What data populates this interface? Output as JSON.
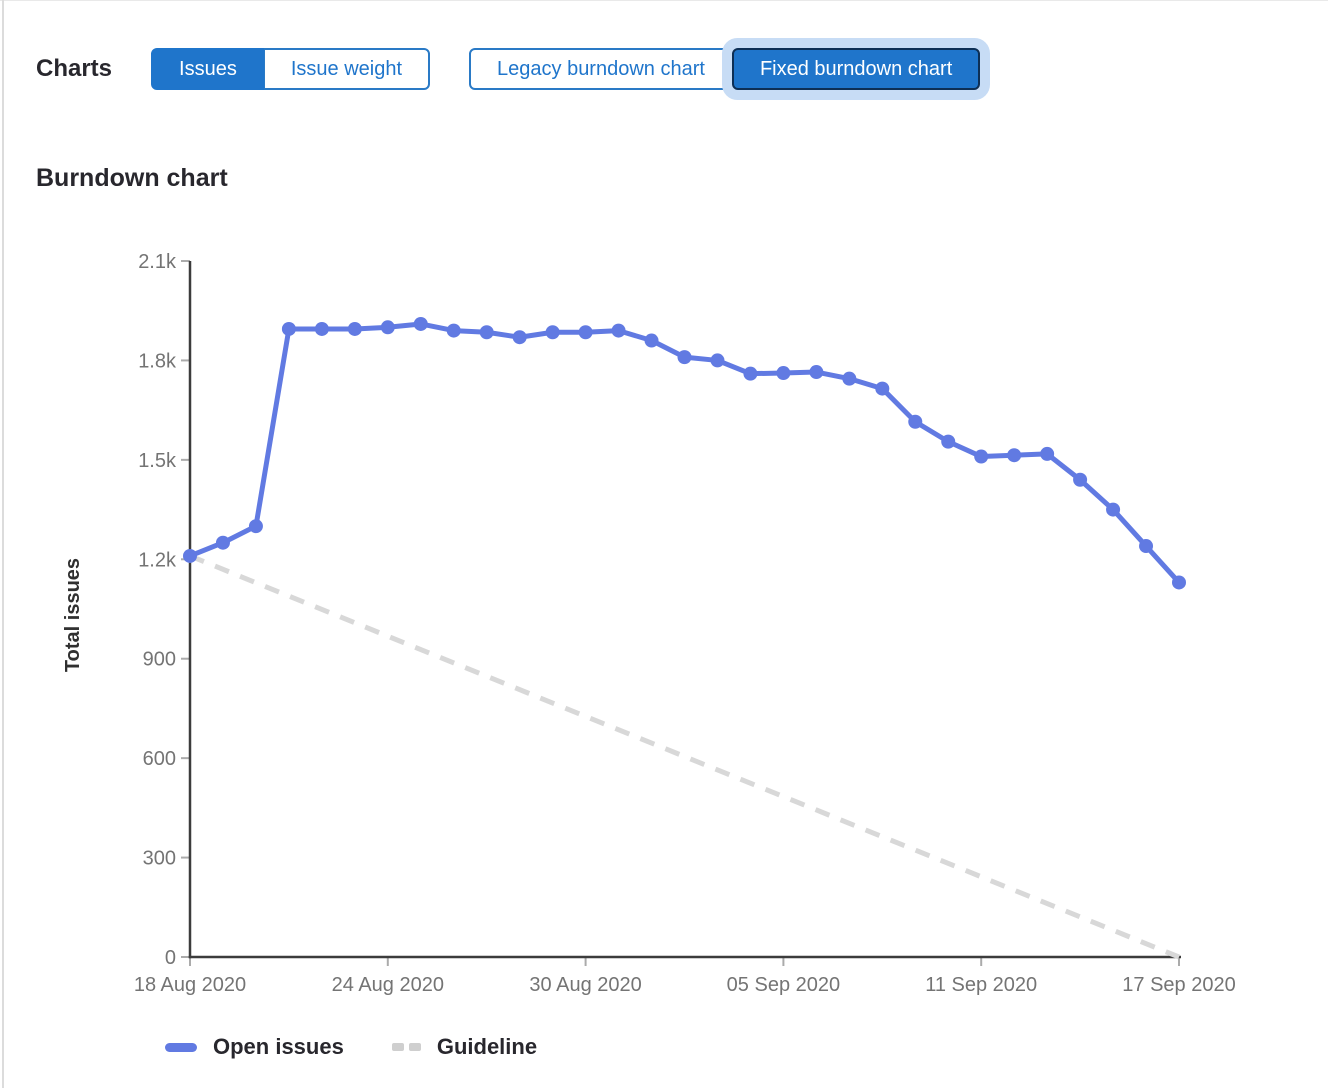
{
  "header": {
    "charts_label": "Charts",
    "metric_toggle": [
      {
        "label": "Issues",
        "active": true
      },
      {
        "label": "Issue weight",
        "active": false
      }
    ],
    "chart_toggle": [
      {
        "label": "Legacy burndown chart",
        "active": false
      },
      {
        "label": "Fixed burndown chart",
        "active": true,
        "focused": true
      }
    ]
  },
  "chart_data": {
    "type": "line",
    "title": "Burndown chart",
    "xlabel": "",
    "ylabel": "Total issues",
    "ylim": [
      0,
      2100
    ],
    "grid": false,
    "legend_position": "bottom",
    "y_ticks": [
      {
        "value": 0,
        "label": "0"
      },
      {
        "value": 300,
        "label": "300"
      },
      {
        "value": 600,
        "label": "600"
      },
      {
        "value": 900,
        "label": "900"
      },
      {
        "value": 1200,
        "label": "1.2k"
      },
      {
        "value": 1500,
        "label": "1.5k"
      },
      {
        "value": 1800,
        "label": "1.8k"
      },
      {
        "value": 2100,
        "label": "2.1k"
      }
    ],
    "x_ticks": [
      {
        "day": 0,
        "label": "18 Aug 2020"
      },
      {
        "day": 6,
        "label": "24 Aug 2020"
      },
      {
        "day": 12,
        "label": "30 Aug 2020"
      },
      {
        "day": 18,
        "label": "05 Sep 2020"
      },
      {
        "day": 24,
        "label": "11 Sep 2020"
      },
      {
        "day": 30,
        "label": "17 Sep 2020"
      }
    ],
    "days_total": 30,
    "series": [
      {
        "name": "Open issues",
        "type": "line-with-markers",
        "color": "#617ae2",
        "values": [
          1210,
          1250,
          1300,
          1895,
          1895,
          1895,
          1900,
          1910,
          1890,
          1885,
          1870,
          1885,
          1885,
          1890,
          1860,
          1810,
          1800,
          1760,
          1762,
          1765,
          1745,
          1715,
          1615,
          1555,
          1510,
          1514,
          1518,
          1440,
          1350,
          1240,
          1130
        ]
      },
      {
        "name": "Guideline",
        "type": "dashed-line",
        "color": "#d8d8d8",
        "points": [
          [
            0,
            1210
          ],
          [
            30,
            0
          ]
        ]
      }
    ],
    "axis_color": "#3c3c3c",
    "tick_color": "#ababab",
    "tick_label_color": "#747474",
    "axis_title_color": "#303030"
  },
  "legend": [
    {
      "label": "Open issues",
      "swatch": "line",
      "color": "#617ae2"
    },
    {
      "label": "Guideline",
      "swatch": "dashed",
      "color": "#cfcfcf"
    }
  ]
}
